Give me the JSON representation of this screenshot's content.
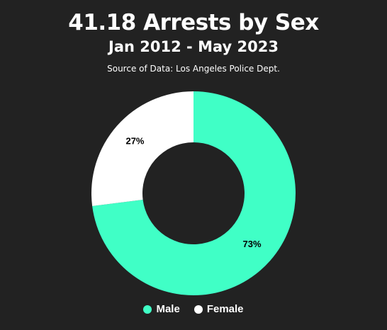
{
  "header": {
    "title": "41.18 Arrests by Sex",
    "subtitle": "Jan 2012 - May 2023",
    "source": "Source of Data: Los Angeles Police Dept."
  },
  "chart_data": {
    "type": "pie",
    "variant": "donut",
    "categories": [
      "Male",
      "Female"
    ],
    "values": [
      73,
      27
    ],
    "labels": [
      "73%",
      "27%"
    ],
    "colors": [
      "#40ffc6",
      "#ffffff"
    ],
    "legend": "bottom"
  }
}
